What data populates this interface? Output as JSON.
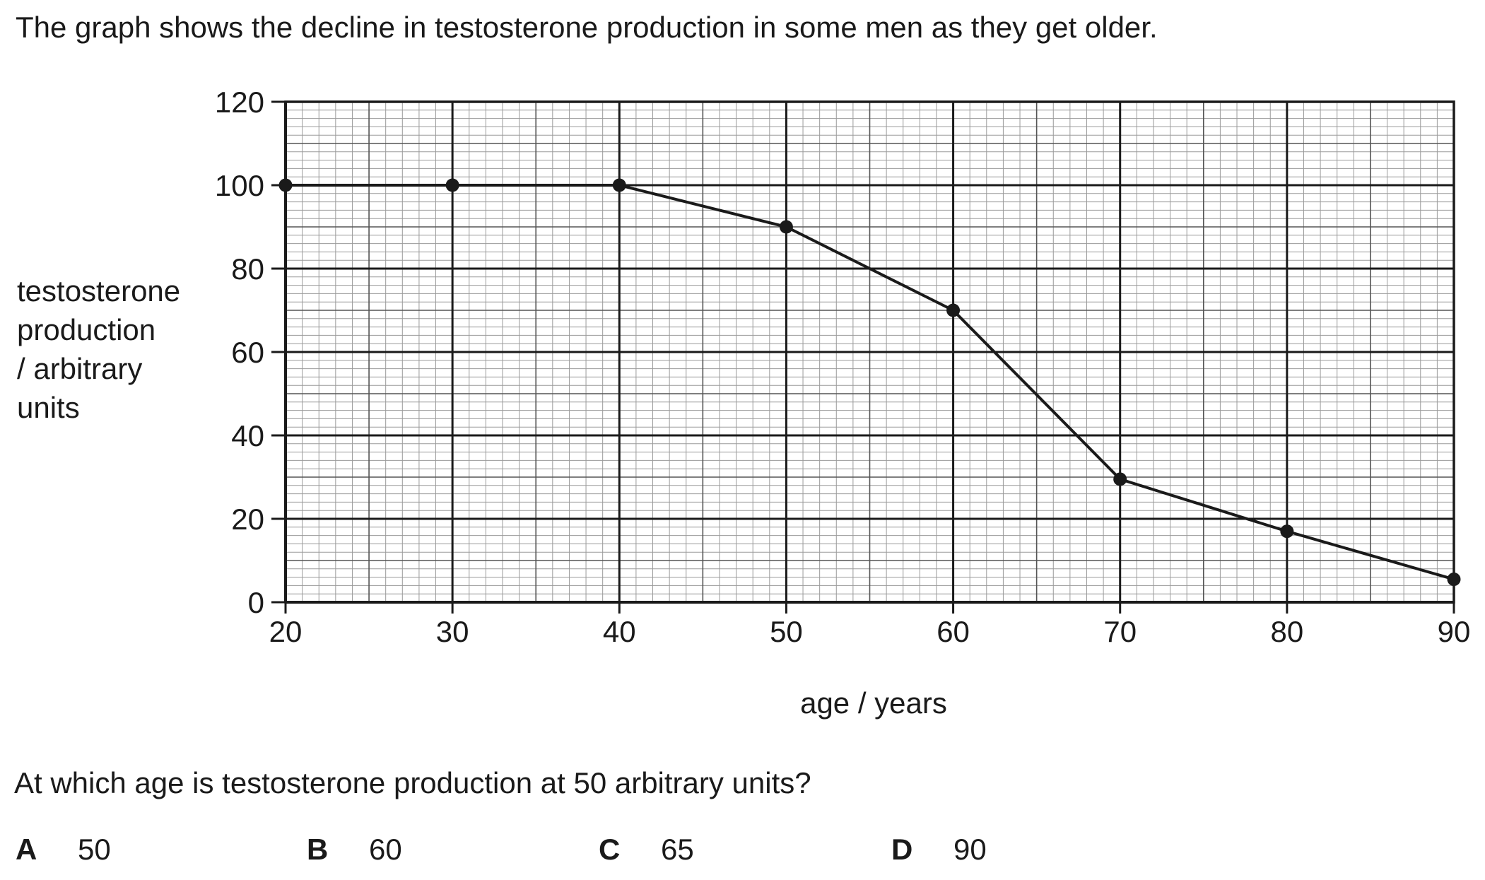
{
  "intro_text": "The graph shows the decline in testosterone production in some men as they get older.",
  "question_text": "At which age is testosterone production at 50 arbitrary units?",
  "options": [
    {
      "letter": "A",
      "value": "50"
    },
    {
      "letter": "B",
      "value": "60"
    },
    {
      "letter": "C",
      "value": "65"
    },
    {
      "letter": "D",
      "value": "90"
    }
  ],
  "chart_data": {
    "type": "line",
    "title": "",
    "xlabel": "age / years",
    "ylabel_lines": [
      "testosterone",
      "production",
      "/ arbitrary",
      "units"
    ],
    "xlim": [
      20,
      90
    ],
    "ylim": [
      0,
      120
    ],
    "x_ticks": [
      20,
      30,
      40,
      50,
      60,
      70,
      80,
      90
    ],
    "y_ticks": [
      0,
      20,
      40,
      60,
      80,
      100,
      120
    ],
    "grid": true,
    "series": [
      {
        "x": [
          20,
          30,
          40,
          50,
          60,
          70,
          80,
          90
        ],
        "y": [
          100,
          100,
          100,
          90,
          70,
          29.5,
          17,
          5.5
        ]
      }
    ],
    "colors": {
      "line": "#1a1a1a",
      "grid_minor": "#9a9a9a",
      "grid_major": "#1a1a1a"
    }
  }
}
